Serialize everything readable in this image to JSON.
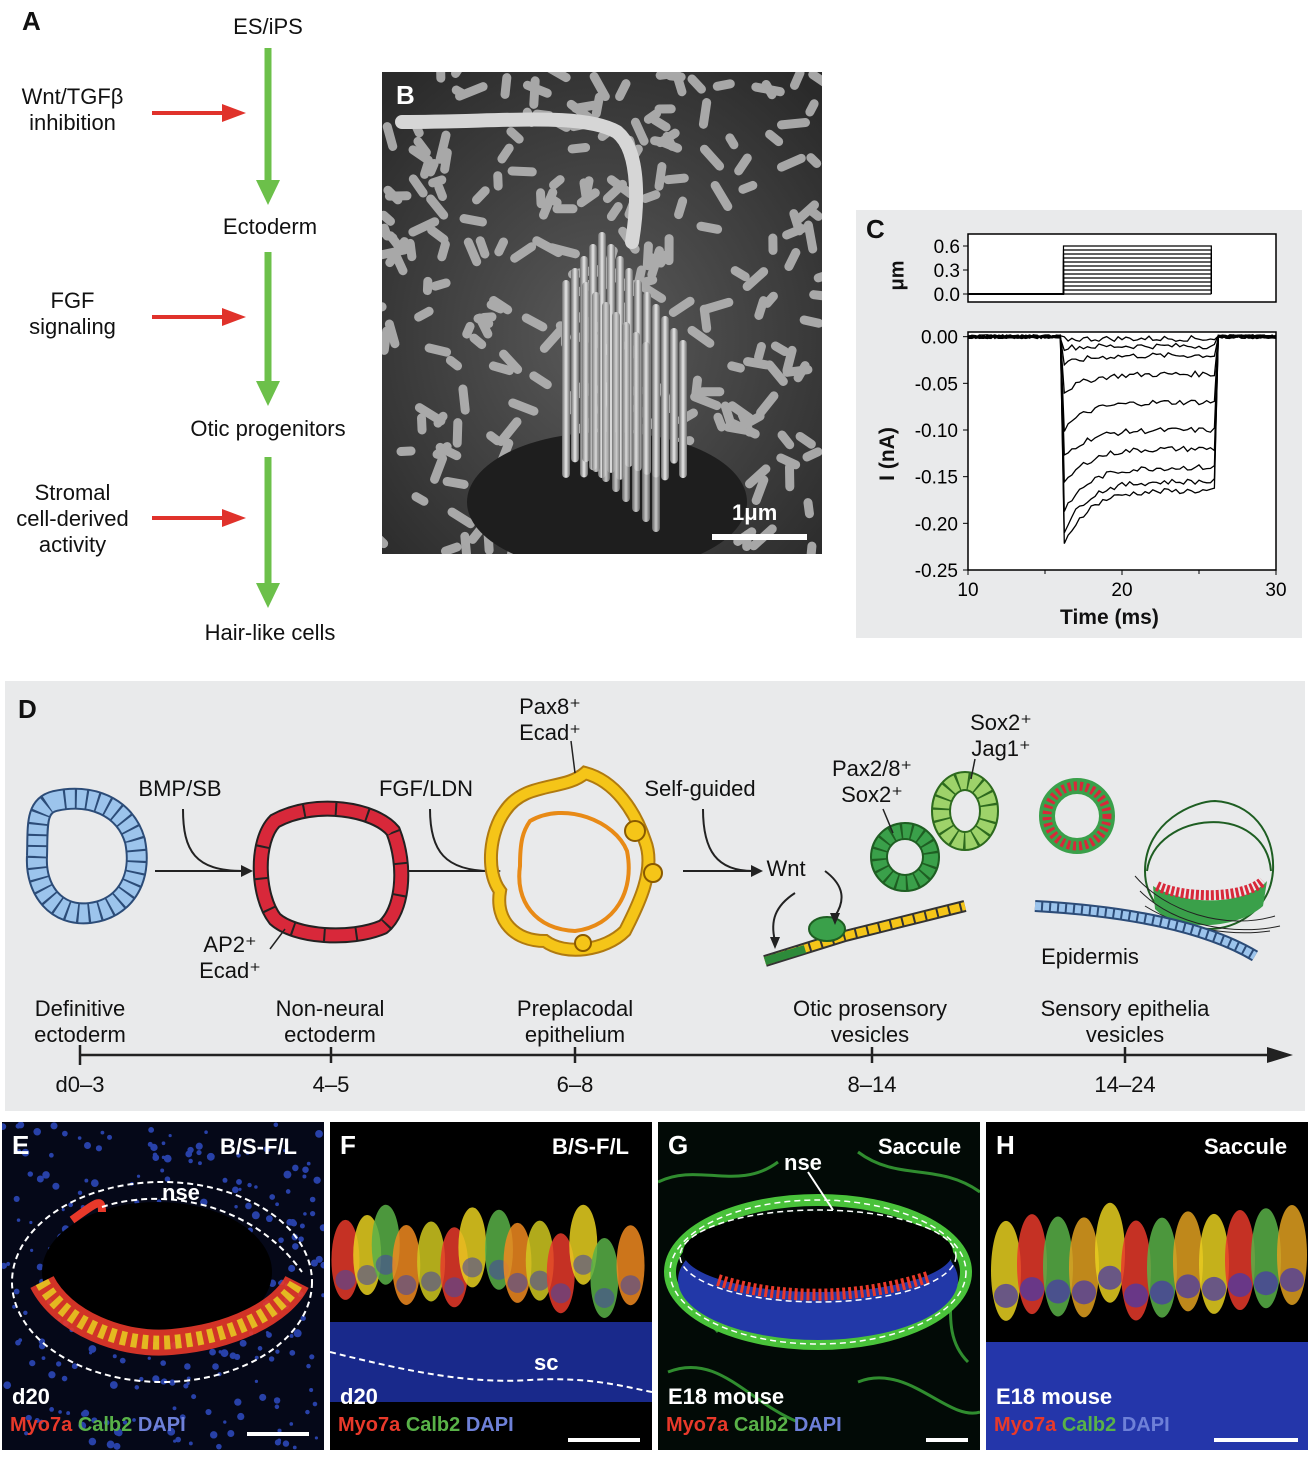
{
  "panelA": {
    "label": "A",
    "steps": [
      "ES/iPS",
      "Ectoderm",
      "Otic progenitors",
      "Hair-like cells"
    ],
    "factors": [
      {
        "line1": "Wnt/TGFβ",
        "line2": "inhibition"
      },
      {
        "line1": "FGF",
        "line2": "signaling"
      },
      {
        "line1": "Stromal",
        "line2": "cell-derived",
        "line3": "activity"
      }
    ],
    "colors": {
      "arrow_main": "#6cc04a",
      "arrow_factor": "#e0322b"
    }
  },
  "panelB": {
    "label": "B",
    "scale_bar": "1μm"
  },
  "panelC": {
    "label": "C",
    "top_ylabel": "μm",
    "top_ticks": [
      "0.6",
      "0.3",
      "0.0"
    ],
    "bottom_ylabel": "I (nA)",
    "xlabel": "Time (ms)",
    "y_ticks": [
      "0.00",
      "-0.05",
      "-0.10",
      "-0.15",
      "-0.20",
      "-0.25"
    ],
    "x_ticks": [
      "10",
      "20",
      "30"
    ]
  },
  "chart_data": {
    "type": "line",
    "xlabel": "Time (ms)",
    "ylabel": "I (nA)",
    "xlim": [
      10,
      30
    ],
    "ylim": [
      -0.25,
      0.01
    ],
    "stimulus": {
      "unit": "μm",
      "start_ms": 16.2,
      "end_ms": 25.8,
      "steps": [
        0.0,
        0.05,
        0.1,
        0.15,
        0.2,
        0.25,
        0.3,
        0.35,
        0.4,
        0.45,
        0.5,
        0.55,
        0.6
      ]
    },
    "series": [
      {
        "peak": -0.003,
        "plateau": -0.002
      },
      {
        "peak": -0.012,
        "plateau": -0.01
      },
      {
        "peak": -0.03,
        "plateau": -0.02
      },
      {
        "peak": -0.06,
        "plateau": -0.04
      },
      {
        "peak": -0.1,
        "plateau": -0.07
      },
      {
        "peak": -0.13,
        "plateau": -0.1
      },
      {
        "peak": -0.16,
        "plateau": -0.12
      },
      {
        "peak": -0.19,
        "plateau": -0.14
      },
      {
        "peak": -0.21,
        "plateau": -0.155
      },
      {
        "peak": -0.225,
        "plateau": -0.165
      }
    ]
  },
  "panelD": {
    "label": "D",
    "treatments": [
      "BMP/SB",
      "FGF/LDN",
      "Self-guided"
    ],
    "markers": {
      "ap2": "AP2⁺",
      "ecad1": "Ecad⁺",
      "pax8": "Pax8⁺",
      "ecad2": "Ecad⁺",
      "pax28": "Pax2/8⁺",
      "sox2a": "Sox2⁺",
      "sox2b": "Sox2⁺",
      "jag1": "Jag1⁺"
    },
    "wnt": "Wnt",
    "epidermis": "Epidermis",
    "stages": [
      {
        "line1": "Definitive",
        "line2": "ectoderm",
        "day": "d0–3"
      },
      {
        "line1": "Non-neural",
        "line2": "ectoderm",
        "day": "4–5"
      },
      {
        "line1": "Preplacodal",
        "line2": "epithelium",
        "day": "6–8"
      },
      {
        "line1": "Otic prosensory",
        "line2": "vesicles",
        "day": "8–14"
      },
      {
        "line1": "Sensory epithelia",
        "line2": "vesicles",
        "day": "14–24"
      }
    ],
    "colors": {
      "blue": "#9cc4ec",
      "red": "#d8283a",
      "yellow": "#f5c518",
      "green": "#58b147"
    }
  },
  "micrographs": [
    {
      "label": "E",
      "condition": "B/S-F/L",
      "tag": "nse",
      "age": "d20"
    },
    {
      "label": "F",
      "condition": "B/S-F/L",
      "tag": "sc",
      "age": "d20"
    },
    {
      "label": "G",
      "condition": "Saccule",
      "tag": "nse",
      "age": "E18 mouse"
    },
    {
      "label": "H",
      "condition": "Saccule",
      "tag": "",
      "age": "E18 mouse"
    }
  ],
  "stain": {
    "myo7a": "Myo7a",
    "calb2": "Calb2",
    "dapi": "DAPI",
    "colors": {
      "myo7a": "#e8392a",
      "calb2": "#59b248",
      "dapi": "#6e80d8"
    }
  }
}
